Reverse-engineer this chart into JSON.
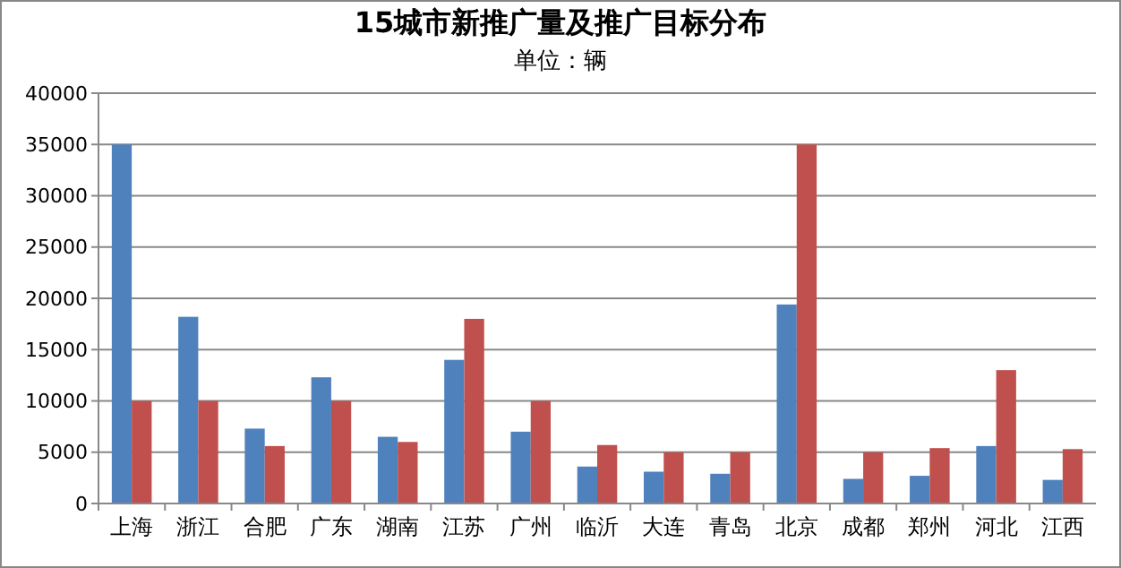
{
  "chart_data": {
    "type": "bar",
    "title": "15城市新推广量及推广目标分布",
    "subtitle": "单位：辆",
    "categories": [
      "上海",
      "浙江",
      "合肥",
      "广东",
      "湖南",
      "江苏",
      "广州",
      "临沂",
      "大连",
      "青岛",
      "北京",
      "成都",
      "郑州",
      "河北",
      "江西"
    ],
    "series": [
      {
        "color": "#4f81bd",
        "values": [
          35000,
          18200,
          7300,
          12300,
          6500,
          14000,
          7000,
          3600,
          3100,
          2900,
          19400,
          2400,
          2700,
          5600,
          2300
        ]
      },
      {
        "color": "#c0504d",
        "values": [
          10000,
          10000,
          5600,
          10000,
          6000,
          18000,
          10000,
          5700,
          5000,
          5000,
          35000,
          5000,
          5400,
          13000,
          5300
        ]
      }
    ],
    "ylim": [
      0,
      40000
    ],
    "yticks": [
      0,
      5000,
      10000,
      15000,
      20000,
      25000,
      30000,
      35000,
      40000
    ],
    "grid": "y"
  }
}
